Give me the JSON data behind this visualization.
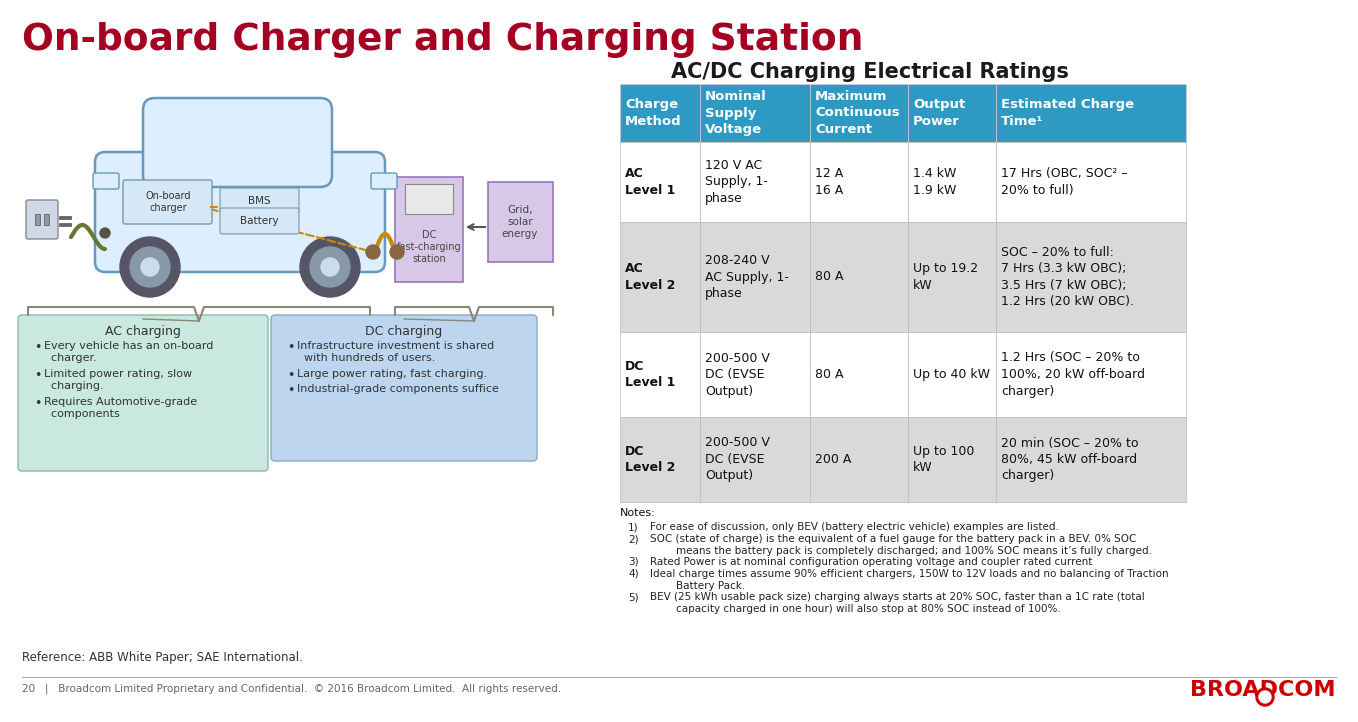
{
  "title": "On-board Charger and Charging Station",
  "title_color": "#A50021",
  "subtitle": "AC/DC Charging Electrical Ratings",
  "subtitle_color": "#1a1a1a",
  "bg_color": "#FFFFFF",
  "header_bg": "#2E9AC4",
  "header_text_color": "#FFFFFF",
  "table_headers": [
    "Charge\nMethod",
    "Nominal\nSupply\nVoltage",
    "Maximum\nContinuous\nCurrent",
    "Output\nPower",
    "Estimated Charge\nTime¹"
  ],
  "table_rows": [
    [
      "AC\nLevel 1",
      "120 V AC\nSupply, 1-\nphase",
      "12 A\n16 A",
      "1.4 kW\n1.9 kW",
      "17 Hrs (OBC, SOC² –\n20% to full)"
    ],
    [
      "AC\nLevel 2",
      "208-240 V\nAC Supply, 1-\nphase",
      "80 A",
      "Up to 19.2\nkW",
      "SOC – 20% to full:\n7 Hrs (3.3 kW OBC);\n3.5 Hrs (7 kW OBC);\n1.2 Hrs (20 kW OBC)."
    ],
    [
      "DC\nLevel 1",
      "200-500 V\nDC (EVSE\nOutput)",
      "80 A",
      "Up to 40 kW",
      "1.2 Hrs (SOC – 20% to\n100%, 20 kW off-board\ncharger)"
    ],
    [
      "DC\nLevel 2",
      "200-500 V\nDC (EVSE\nOutput)",
      "200 A",
      "Up to 100\nkW",
      "20 min (SOC – 20% to\n80%, 45 kW off-board\ncharger)"
    ]
  ],
  "row_colors": [
    "#FFFFFF",
    "#D9D9D9",
    "#FFFFFF",
    "#D9D9D9"
  ],
  "notes_title": "Notes:",
  "notes": [
    "For ease of discussion, only BEV (battery electric vehicle) examples are listed.",
    "SOC (state of charge) is the equivalent of a fuel gauge for the battery pack in a BEV. 0% SOC\n        means the battery pack is completely discharged; and 100% SOC means it’s fully charged.",
    "Rated Power is at nominal configuration operating voltage and coupler rated current",
    "Ideal charge times assume 90% efficient chargers, 150W to 12V loads and no balancing of Traction\n        Battery Pack.",
    "BEV (25 kWh usable pack size) charging always starts at 20% SOC, faster than a 1C rate (total\n        capacity charged in one hour) will also stop at 80% SOC instead of 100%."
  ],
  "ac_charging_title": "AC charging",
  "ac_charging_points": [
    "Every vehicle has an on-board\n  charger.",
    "Limited power rating, slow\n  charging.",
    "Requires Automotive-grade\n  components"
  ],
  "dc_charging_title": "DC charging",
  "dc_charging_points": [
    "Infrastructure investment is shared\n  with hundreds of users.",
    "Large power rating, fast charging.",
    "Industrial-grade components suffice"
  ],
  "ac_box_bg": "#C8E8E0",
  "dc_box_bg": "#BDD5EE",
  "reference": "Reference: ABB White Paper; SAE International.",
  "footer": "20   |   Broadcom Limited Proprietary and Confidential.  © 2016 Broadcom Limited.  All rights reserved.",
  "broadcom_color": "#CC0000",
  "car_body_color": "#DDEEFF",
  "car_outline_color": "#6699BB",
  "dc_station_bg": "#D8C8E8",
  "dc_station_border": "#9977BB",
  "grid_box_bg": "#D8C8E8",
  "grid_box_border": "#9977BB"
}
